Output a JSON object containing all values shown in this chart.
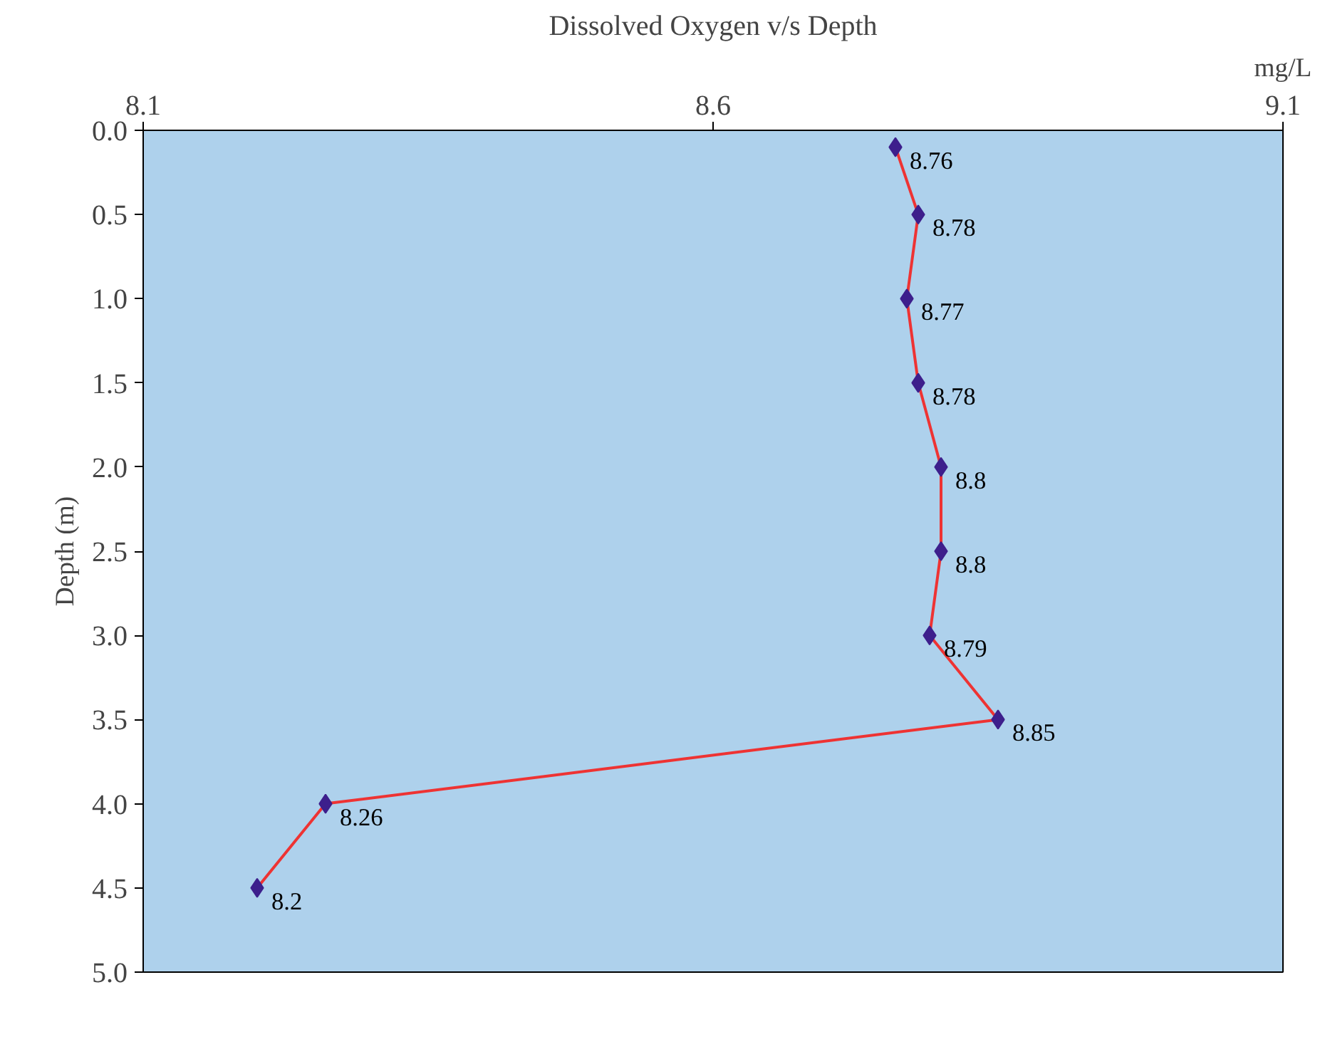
{
  "chart_data": {
    "type": "line",
    "orientation": "horizontal",
    "title": "Dissolved Oxygen v/s Depth",
    "xlabel": "mg/L",
    "ylabel": "Depth (m)",
    "xlim": [
      8.1,
      9.1
    ],
    "xticks": [
      8.1,
      8.6,
      9.1
    ],
    "ylim": [
      5,
      0
    ],
    "yticks": [
      {
        "value": 0,
        "label": "0.0"
      },
      {
        "value": 0.5,
        "label": "0.5"
      },
      {
        "value": 1,
        "label": "1.0"
      },
      {
        "value": 1.5,
        "label": "1.5"
      },
      {
        "value": 2,
        "label": "2.0"
      },
      {
        "value": 2.5,
        "label": "2.5"
      },
      {
        "value": 3,
        "label": "3.0"
      },
      {
        "value": 3.5,
        "label": "3.5"
      },
      {
        "value": 4,
        "label": "4.0"
      },
      {
        "value": 4.5,
        "label": "4.5"
      },
      {
        "value": 5,
        "label": "5.0"
      }
    ],
    "series": [
      {
        "color": "#ee3333",
        "values": [
          8.76,
          8.78,
          8.77,
          8.78,
          8.8,
          8.8,
          8.79,
          8.85,
          8.26,
          8.2
        ],
        "x": [
          0.1,
          0.5,
          1.0,
          1.5,
          2.0,
          2.5,
          3.0,
          3.5,
          4.0,
          4.5
        ],
        "colors": [
          "#3d1f8c",
          "#3d1f8c",
          "#3d1f8c",
          "#3d1f8c",
          "#3d1f8c",
          "#3d1f8c",
          "#3d1f8c",
          "#3d1f8c",
          "#3d1f8c",
          "#3d1f8c"
        ]
      }
    ],
    "data_labels": true,
    "marker": "diamond",
    "line_style": "solid",
    "grid": false
  }
}
